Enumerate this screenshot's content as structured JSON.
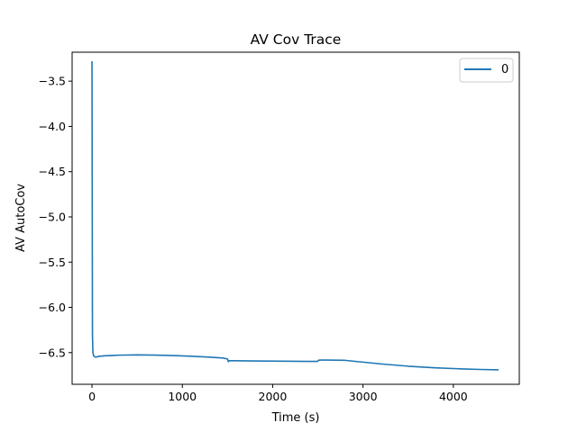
{
  "chart_data": {
    "type": "line",
    "title": "AV Cov Trace",
    "xlabel": "Time (s)",
    "ylabel": "AV AutoCov",
    "xlim": [
      -220,
      4730
    ],
    "ylim": [
      -6.85,
      -3.18
    ],
    "xticks": [
      0,
      1000,
      2000,
      3000,
      4000
    ],
    "yticks": [
      -3.5,
      -4.0,
      -4.5,
      -5.0,
      -5.5,
      -6.0,
      -6.5
    ],
    "xtick_labels": [
      "0",
      "1000",
      "2000",
      "3000",
      "4000"
    ],
    "ytick_labels": [
      "−3.5",
      "−4.0",
      "−4.5",
      "−5.0",
      "−5.5",
      "−6.0",
      "−6.5"
    ],
    "grid": false,
    "legend": {
      "placement": "top-right",
      "entries": [
        "0"
      ]
    },
    "series": [
      {
        "name": "0",
        "color": "#1f77b4",
        "x": [
          0,
          5,
          10,
          20,
          40,
          80,
          150,
          300,
          500,
          700,
          900,
          1100,
          1300,
          1450,
          1500,
          1510,
          1520,
          1550,
          1800,
          2100,
          2400,
          2495,
          2510,
          2530,
          2600,
          2800,
          3000,
          3200,
          3500,
          3800,
          4100,
          4300,
          4500
        ],
        "y": [
          -3.28,
          -6.3,
          -6.5,
          -6.54,
          -6.55,
          -6.54,
          -6.535,
          -6.528,
          -6.525,
          -6.527,
          -6.532,
          -6.54,
          -6.55,
          -6.56,
          -6.57,
          -6.6,
          -6.59,
          -6.59,
          -6.592,
          -6.595,
          -6.597,
          -6.597,
          -6.583,
          -6.582,
          -6.582,
          -6.585,
          -6.605,
          -6.625,
          -6.65,
          -6.668,
          -6.68,
          -6.686,
          -6.69
        ]
      }
    ]
  }
}
